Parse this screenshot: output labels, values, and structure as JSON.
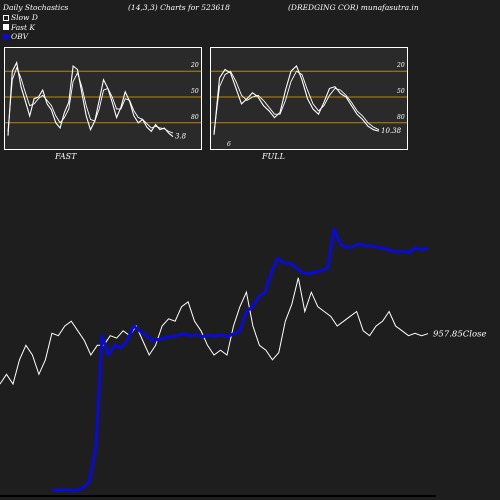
{
  "header": {
    "left": "Daily Stochastics",
    "middle": "(14,3,3) Charts for 523618",
    "right": "(DREDGING COR) munafasutra.in"
  },
  "legend": [
    {
      "label": "Slow  D",
      "icon": "hollow-square-icon"
    },
    {
      "label": "Fast K",
      "icon": "filled-square-icon"
    },
    {
      "label": "OBV",
      "icon": "blue-square-icon"
    }
  ],
  "colors": {
    "background": "#1e1e1e",
    "panel_bg": "#2a2a2a",
    "level_line": "#b8860b",
    "stoch_line": "#ffffff",
    "obv_line": "#0a0ad6",
    "close_line": "#ffffff"
  },
  "chart_data": [
    {
      "type": "line",
      "panel_label": "FAST",
      "ylim": [
        0,
        100
      ],
      "levels": [
        20,
        50,
        80
      ],
      "tick_labels": [
        "80",
        "50",
        "20"
      ],
      "last_value_label": "3.8",
      "series": [
        {
          "name": "Fast K",
          "values": [
            5,
            80,
            90,
            62,
            45,
            28,
            48,
            50,
            58,
            42,
            35,
            20,
            14,
            32,
            44,
            86,
            82,
            55,
            28,
            12,
            22,
            46,
            70,
            60,
            44,
            26,
            38,
            56,
            45,
            28,
            20,
            24,
            15,
            10,
            18,
            12,
            14,
            8,
            3.8
          ]
        },
        {
          "name": "Slow  D",
          "values": [
            10,
            70,
            84,
            72,
            55,
            40,
            42,
            48,
            52,
            46,
            40,
            28,
            20,
            26,
            36,
            68,
            78,
            62,
            40,
            24,
            22,
            36,
            58,
            60,
            50,
            36,
            36,
            48,
            46,
            34,
            26,
            24,
            19,
            14,
            16,
            14,
            13,
            10,
            8
          ]
        }
      ]
    },
    {
      "type": "line",
      "panel_label": "FULL",
      "ylim": [
        0,
        100
      ],
      "levels": [
        20,
        50,
        80
      ],
      "tick_labels": [
        "80",
        "50",
        "20",
        "6"
      ],
      "last_value_label": "10.38",
      "series": [
        {
          "name": "Fast K",
          "values": [
            6,
            72,
            82,
            78,
            60,
            42,
            48,
            55,
            50,
            40,
            34,
            26,
            32,
            58,
            80,
            86,
            70,
            48,
            36,
            30,
            44,
            60,
            62,
            54,
            50,
            40,
            30,
            24,
            16,
            12,
            10.38
          ]
        },
        {
          "name": "Slow  D",
          "values": [
            8,
            62,
            76,
            80,
            68,
            52,
            46,
            50,
            52,
            46,
            38,
            30,
            30,
            46,
            68,
            80,
            76,
            58,
            42,
            34,
            40,
            52,
            60,
            58,
            52,
            44,
            34,
            28,
            20,
            15,
            12
          ]
        }
      ]
    },
    {
      "type": "line",
      "close_label": "957.85Close",
      "series": [
        {
          "name": "Close",
          "values": [
            640,
            660,
            640,
            690,
            720,
            700,
            660,
            690,
            745,
            740,
            760,
            770,
            750,
            730,
            700,
            720,
            720,
            740,
            735,
            750,
            740,
            760,
            730,
            700,
            720,
            760,
            775,
            770,
            800,
            810,
            770,
            750,
            720,
            700,
            710,
            700,
            760,
            800,
            830,
            760,
            720,
            710,
            690,
            705,
            770,
            805,
            860,
            790,
            830,
            800,
            790,
            780,
            760,
            770,
            780,
            790,
            750,
            740,
            760,
            770,
            790,
            760,
            750,
            740,
            745,
            740,
            744
          ]
        },
        {
          "name": "OBV",
          "values": [
            420,
            420,
            420,
            420,
            420,
            425,
            440,
            510,
            740,
            700,
            720,
            715,
            730,
            760,
            750,
            740,
            730,
            732,
            735,
            738,
            740,
            744,
            740,
            742,
            738,
            741,
            739,
            742,
            738,
            744,
            750,
            790,
            800,
            820,
            830,
            870,
            900,
            890,
            890,
            880,
            870,
            868,
            872,
            874,
            880,
            960,
            930,
            922,
            924,
            930,
            926,
            925,
            923,
            920,
            916,
            914,
            915,
            912,
            922,
            918,
            921
          ]
        }
      ]
    }
  ]
}
